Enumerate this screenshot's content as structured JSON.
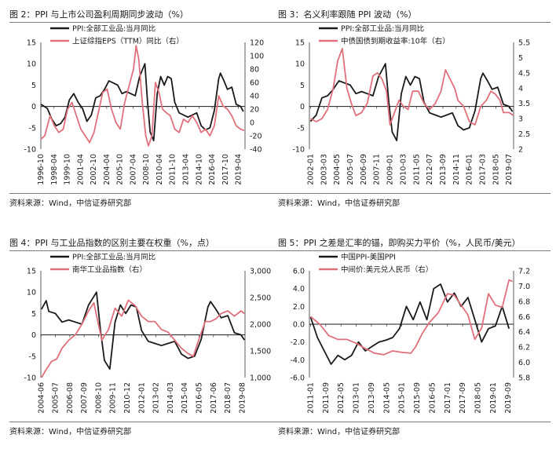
{
  "colors": {
    "series_black": "#1a1a1a",
    "series_pink": "#e0707c",
    "zero_line": "#1a1a1a"
  },
  "charts": [
    {
      "title": "图 2：PPI 与上市公司盈利周期同步波动（%）",
      "source": "资料来源：Wind，中信证券研究部"
    },
    {
      "title": "图 3：名义利率跟随 PPI 波动（%）",
      "source": "资料来源：Wind，中信证券研究部"
    },
    {
      "title": "图 4：PPI 与工业品指数的区别主要在权重（%，点）",
      "source": "资料来源：Wind，中信证券研究部"
    },
    {
      "title": "图 5：PPI 之差是汇率的锚，即购买力平价（%，人民币/美元）",
      "source": "资料来源：Wind，中信证券研究部"
    }
  ],
  "chart_data": [
    {
      "type": "line",
      "title": "图 2：PPI 与上市公司盈利周期同步波动（%）",
      "x_range": [
        1996.75,
        2020.0
      ],
      "x_ticks": [
        "1996-10",
        "1998-04",
        "1999-10",
        "2001-04",
        "2002-10",
        "2004-04",
        "2005-10",
        "2007-04",
        "2008-10",
        "2010-04",
        "2011-10",
        "2013-04",
        "2014-10",
        "2016-04",
        "2017-10",
        "2019-04"
      ],
      "y_left": {
        "range": [
          -10,
          15
        ],
        "ticks": [
          -10,
          -5,
          0,
          5,
          10,
          15
        ]
      },
      "y_right": {
        "range": [
          -40,
          120
        ],
        "ticks": [
          -40,
          -20,
          0,
          20,
          40,
          60,
          80,
          100,
          120
        ]
      },
      "legend_position": "top-left",
      "series": [
        {
          "name": "PPI:全部工业品:当月同比",
          "axis": "left",
          "color": "#1a1a1a",
          "x": [
            1996.75,
            1997.0,
            1997.5,
            1998.0,
            1998.5,
            1999.0,
            1999.5,
            2000.0,
            2000.5,
            2001.0,
            2001.5,
            2002.0,
            2002.5,
            2003.0,
            2003.5,
            2004.0,
            2004.5,
            2005.0,
            2005.5,
            2006.0,
            2006.5,
            2007.0,
            2007.5,
            2008.0,
            2008.6,
            2008.9,
            2009.2,
            2009.6,
            2010.0,
            2010.4,
            2010.8,
            2011.2,
            2011.6,
            2012.0,
            2012.5,
            2013.0,
            2013.5,
            2014.0,
            2014.5,
            2015.0,
            2015.5,
            2016.0,
            2016.5,
            2017.0,
            2017.2,
            2017.6,
            2018.0,
            2018.5,
            2019.0,
            2019.5,
            2019.8
          ],
          "y": [
            0.5,
            0.2,
            -0.5,
            -3.0,
            -4.5,
            -4.0,
            -2.5,
            1.5,
            3.0,
            1.0,
            -0.5,
            -3.5,
            -2.0,
            2.0,
            2.5,
            4.0,
            6.0,
            5.5,
            5.0,
            3.0,
            3.5,
            3.0,
            2.5,
            7.0,
            10.0,
            1.0,
            -6.0,
            -8.0,
            3.0,
            7.0,
            5.0,
            7.0,
            6.5,
            1.0,
            -1.5,
            -2.0,
            -2.5,
            -2.0,
            -1.5,
            -4.5,
            -5.5,
            -5.0,
            -1.0,
            6.5,
            7.8,
            6.0,
            4.0,
            4.5,
            0.5,
            0.0,
            -1.2
          ]
        },
        {
          "name": "上证综指EPS（TTM）同比（右）",
          "axis": "right",
          "color": "#e0707c",
          "x": [
            1996.75,
            1997.2,
            1997.8,
            1998.3,
            1998.8,
            1999.3,
            1999.8,
            2000.3,
            2000.8,
            2001.3,
            2001.8,
            2002.3,
            2002.8,
            2003.3,
            2003.8,
            2004.3,
            2004.8,
            2005.3,
            2005.8,
            2006.3,
            2006.8,
            2007.3,
            2007.6,
            2007.9,
            2008.3,
            2008.7,
            2009.0,
            2009.4,
            2009.8,
            2010.2,
            2010.6,
            2011.0,
            2011.5,
            2012.0,
            2012.5,
            2013.0,
            2013.5,
            2014.0,
            2014.5,
            2015.0,
            2015.5,
            2016.0,
            2016.5,
            2017.0,
            2017.5,
            2018.0,
            2018.5,
            2019.0,
            2019.5,
            2019.9
          ],
          "y": [
            -25,
            -20,
            10,
            -5,
            -15,
            -10,
            20,
            30,
            10,
            -10,
            -20,
            -30,
            -15,
            15,
            45,
            50,
            20,
            0,
            -10,
            30,
            55,
            80,
            115,
            95,
            30,
            -20,
            -35,
            -20,
            60,
            45,
            20,
            15,
            10,
            -10,
            -15,
            5,
            0,
            10,
            0,
            -15,
            -10,
            -20,
            -5,
            40,
            25,
            20,
            10,
            -5,
            -10,
            -12
          ]
        }
      ]
    },
    {
      "type": "line",
      "title": "图 3：名义利率跟随 PPI 波动（%）",
      "x_range": [
        2001.9,
        2019.9
      ],
      "x_ticks": [
        "2002-01",
        "2003-03",
        "2004-05",
        "2005-07",
        "2006-09",
        "2007-11",
        "2009-01",
        "2010-03",
        "2011-05",
        "2012-07",
        "2013-09",
        "2014-11",
        "2016-01",
        "2017-03",
        "2018-05",
        "2019-07"
      ],
      "y_left": {
        "range": [
          -10,
          15
        ],
        "ticks": [
          -10,
          -5,
          0,
          5,
          10,
          15
        ]
      },
      "y_right": {
        "range": [
          2.0,
          5.5
        ],
        "ticks": [
          2.0,
          2.5,
          3.0,
          3.5,
          4.0,
          4.5,
          5.0,
          5.5
        ]
      },
      "legend_position": "top-left",
      "series": [
        {
          "name": "PPI:全部工业品:当月同比",
          "axis": "left",
          "color": "#1a1a1a",
          "x": [
            2002.0,
            2002.5,
            2003.0,
            2003.5,
            2004.0,
            2004.5,
            2005.0,
            2005.5,
            2006.0,
            2006.5,
            2007.0,
            2007.5,
            2008.0,
            2008.6,
            2008.9,
            2009.2,
            2009.6,
            2010.0,
            2010.4,
            2010.8,
            2011.2,
            2011.6,
            2012.0,
            2012.5,
            2013.0,
            2013.5,
            2014.0,
            2014.5,
            2015.0,
            2015.5,
            2016.0,
            2016.5,
            2017.0,
            2017.2,
            2017.6,
            2018.0,
            2018.5,
            2019.0,
            2019.5,
            2019.8
          ],
          "y": [
            -3.5,
            -2.0,
            2.0,
            2.5,
            4.0,
            6.0,
            5.5,
            5.0,
            3.0,
            3.5,
            3.0,
            2.5,
            7.0,
            10.0,
            1.0,
            -6.0,
            -8.0,
            3.0,
            7.0,
            5.0,
            7.0,
            6.5,
            1.0,
            -1.5,
            -2.0,
            -2.5,
            -2.0,
            -1.5,
            -4.5,
            -5.5,
            -5.0,
            -1.0,
            6.5,
            7.8,
            6.0,
            4.0,
            4.5,
            0.5,
            0.0,
            -1.2
          ]
        },
        {
          "name": "中债国债到期收益率:10年（右）",
          "axis": "right",
          "color": "#e0707c",
          "x": [
            2002.0,
            2002.5,
            2003.0,
            2003.5,
            2004.0,
            2004.4,
            2004.8,
            2005.2,
            2005.6,
            2006.0,
            2006.5,
            2007.0,
            2007.5,
            2007.9,
            2008.3,
            2008.7,
            2009.0,
            2009.4,
            2009.8,
            2010.2,
            2010.6,
            2011.0,
            2011.5,
            2012.0,
            2012.5,
            2013.0,
            2013.5,
            2013.9,
            2014.3,
            2014.7,
            2015.0,
            2015.5,
            2016.0,
            2016.5,
            2017.0,
            2017.5,
            2017.9,
            2018.3,
            2018.7,
            2019.0,
            2019.5,
            2019.9
          ],
          "y": [
            3.0,
            2.9,
            3.0,
            3.3,
            4.0,
            4.9,
            5.3,
            4.0,
            3.5,
            3.1,
            3.2,
            3.5,
            4.4,
            4.5,
            4.3,
            3.9,
            2.8,
            3.2,
            3.6,
            3.4,
            3.3,
            3.9,
            3.9,
            3.5,
            3.3,
            3.5,
            3.9,
            4.6,
            4.3,
            4.0,
            3.6,
            3.4,
            2.9,
            2.8,
            3.4,
            3.6,
            3.9,
            3.8,
            3.6,
            3.2,
            3.2,
            3.1
          ]
        }
      ]
    },
    {
      "type": "line",
      "title": "图 4：PPI 与工业品指数的区别主要在权重（%，点）",
      "x_range": [
        2004.4,
        2019.8
      ],
      "x_ticks": [
        "2004-06",
        "2005-07",
        "2006-08",
        "2007-09",
        "2008-10",
        "2009-11",
        "2010-12",
        "2012-01",
        "2013-02",
        "2014-03",
        "2015-04",
        "2016-05",
        "2017-06",
        "2018-07",
        "2019-08"
      ],
      "y_left": {
        "range": [
          -10,
          15
        ],
        "ticks": [
          -10,
          -5,
          0,
          5,
          10,
          15
        ]
      },
      "y_right": {
        "range": [
          1000,
          3000
        ],
        "ticks": [
          "1,000",
          "1,500",
          "2,000",
          "2,500",
          "3,000"
        ],
        "tick_values": [
          1000,
          1500,
          2000,
          2500,
          3000
        ]
      },
      "legend_position": "top-left",
      "series": [
        {
          "name": "PPI:全部工业品:当月同比",
          "axis": "left",
          "color": "#1a1a1a",
          "x": [
            2004.45,
            2004.8,
            2005.0,
            2005.5,
            2006.0,
            2006.5,
            2007.0,
            2007.5,
            2008.0,
            2008.6,
            2008.9,
            2009.2,
            2009.6,
            2010.0,
            2010.4,
            2010.8,
            2011.2,
            2011.6,
            2012.0,
            2012.5,
            2013.0,
            2013.5,
            2014.0,
            2014.5,
            2015.0,
            2015.5,
            2016.0,
            2016.5,
            2017.0,
            2017.2,
            2017.6,
            2018.0,
            2018.5,
            2019.0,
            2019.5,
            2019.75
          ],
          "y": [
            6.0,
            8.0,
            5.5,
            5.0,
            3.0,
            3.5,
            3.0,
            2.5,
            7.0,
            10.0,
            1.0,
            -6.0,
            -8.0,
            3.0,
            7.0,
            5.0,
            7.0,
            6.5,
            1.0,
            -1.5,
            -2.0,
            -2.5,
            -2.0,
            -1.5,
            -4.5,
            -5.5,
            -5.0,
            -1.0,
            6.5,
            7.8,
            6.0,
            4.0,
            4.5,
            0.5,
            0.0,
            -1.2
          ]
        },
        {
          "name": "南华工业品指数（右）",
          "axis": "right",
          "color": "#e0707c",
          "x": [
            2004.45,
            2004.8,
            2005.2,
            2005.6,
            2006.0,
            2006.5,
            2007.0,
            2007.5,
            2008.0,
            2008.4,
            2008.7,
            2009.0,
            2009.5,
            2010.0,
            2010.5,
            2011.0,
            2011.5,
            2012.0,
            2012.5,
            2013.0,
            2013.5,
            2014.0,
            2014.5,
            2015.0,
            2015.5,
            2015.9,
            2016.3,
            2016.8,
            2017.2,
            2017.6,
            2018.0,
            2018.5,
            2019.0,
            2019.5,
            2019.75
          ],
          "y": [
            1000,
            1150,
            1300,
            1350,
            1550,
            1700,
            1800,
            2000,
            2250,
            2400,
            2050,
            1700,
            1900,
            2300,
            2150,
            2450,
            2350,
            2150,
            2050,
            2050,
            1900,
            1850,
            1700,
            1550,
            1450,
            1400,
            1700,
            2050,
            2050,
            2100,
            2200,
            2250,
            2150,
            2250,
            2200
          ]
        }
      ]
    },
    {
      "type": "line",
      "title": "图 5：PPI 之差是汇率的锚，即购买力平价（%，人民币/美元）",
      "x_range": [
        2010.95,
        2019.9
      ],
      "x_ticks": [
        "2011-01",
        "2011-09",
        "2012-05",
        "2013-01",
        "2013-09",
        "2014-05",
        "2015-01",
        "2015-09",
        "2016-05",
        "2017-01",
        "2017-09",
        "2018-05",
        "2019-01",
        "2019-09"
      ],
      "y_left": {
        "range": [
          -6.0,
          6.0
        ],
        "ticks": [
          "-6.0",
          "-4.0",
          "-2.0",
          "0.0",
          "2.0",
          "4.0",
          "6.0"
        ],
        "tick_values": [
          -6,
          -4,
          -2,
          0,
          2,
          4,
          6
        ]
      },
      "y_right": {
        "range": [
          5.8,
          7.2
        ],
        "ticks": [
          "5.8",
          "6.0",
          "6.2",
          "6.4",
          "6.6",
          "6.8",
          "7.0",
          "7.2"
        ],
        "tick_values": [
          5.8,
          6.0,
          6.2,
          6.4,
          6.6,
          6.8,
          7.0,
          7.2
        ]
      },
      "legend_position": "top-left",
      "series": [
        {
          "name": "中国PPI-美国PPI",
          "axis": "left",
          "color": "#1a1a1a",
          "x": [
            2011.0,
            2011.3,
            2011.6,
            2011.9,
            2012.2,
            2012.5,
            2012.8,
            2013.1,
            2013.4,
            2013.7,
            2014.0,
            2014.3,
            2014.6,
            2014.9,
            2015.2,
            2015.5,
            2015.8,
            2016.1,
            2016.4,
            2016.7,
            2017.0,
            2017.3,
            2017.6,
            2017.9,
            2018.2,
            2018.5,
            2018.8,
            2019.1,
            2019.4,
            2019.7
          ],
          "y": [
            0.8,
            -1.5,
            -3.0,
            -4.5,
            -3.5,
            -4.0,
            -3.5,
            -2.0,
            -3.0,
            -2.5,
            -2.0,
            -1.8,
            -1.5,
            -0.5,
            2.0,
            0.5,
            2.5,
            0.5,
            4.0,
            4.5,
            2.5,
            3.5,
            2.0,
            3.0,
            0.5,
            -2.0,
            -0.5,
            -0.2,
            2.0,
            -0.5
          ]
        },
        {
          "name": "中间价:美元兑人民币（右）",
          "axis": "right",
          "color": "#e0707c",
          "x": [
            2011.0,
            2011.4,
            2011.8,
            2012.2,
            2012.6,
            2013.0,
            2013.4,
            2013.8,
            2014.2,
            2014.6,
            2015.0,
            2015.4,
            2015.6,
            2015.9,
            2016.2,
            2016.6,
            2017.0,
            2017.3,
            2017.6,
            2017.9,
            2018.2,
            2018.5,
            2018.8,
            2019.1,
            2019.4,
            2019.7,
            2019.85
          ],
          "y": [
            6.6,
            6.5,
            6.35,
            6.3,
            6.3,
            6.25,
            6.18,
            6.12,
            6.1,
            6.15,
            6.13,
            6.12,
            6.2,
            6.38,
            6.52,
            6.65,
            6.9,
            6.88,
            6.75,
            6.62,
            6.3,
            6.45,
            6.9,
            6.75,
            6.72,
            7.08,
            7.06
          ]
        }
      ]
    }
  ]
}
